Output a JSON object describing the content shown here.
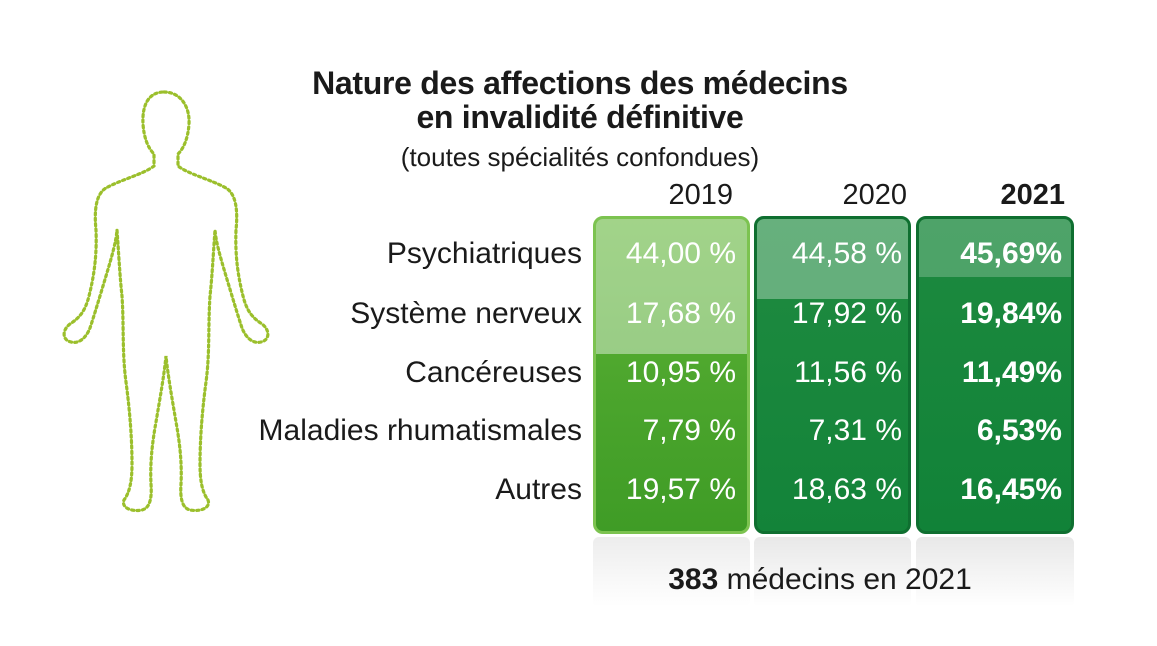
{
  "colors": {
    "light_green": "#4aa42c",
    "dark_green": "#138339",
    "outline_green": "#9bbf2c"
  },
  "icon": "human-body-outline-icon",
  "chart_data": {
    "type": "table",
    "title_line1": "Nature des affections des médecins",
    "title_line2": "en invalidité définitive",
    "subtitle": "(toutes spécialités confondues)",
    "columns": [
      "2019",
      "2020",
      "2021"
    ],
    "rows": [
      {
        "label": "Psychiatriques",
        "values": [
          "44,00 %",
          "44,58 %",
          "45,69%"
        ]
      },
      {
        "label": "Système nerveux",
        "values": [
          "17,68 %",
          "17,92 %",
          "19,84%"
        ]
      },
      {
        "label": "Cancéreuses",
        "values": [
          "10,95 %",
          "11,56 %",
          "11,49%"
        ]
      },
      {
        "label": "Maladies rhumatismales",
        "values": [
          "7,79 %",
          "7,31 %",
          "6,53%"
        ]
      },
      {
        "label": "Autres",
        "values": [
          "19,57 %",
          "18,63 %",
          "16,45%"
        ]
      }
    ],
    "footer_count": "383",
    "footer_text": " médecins en 2021"
  }
}
